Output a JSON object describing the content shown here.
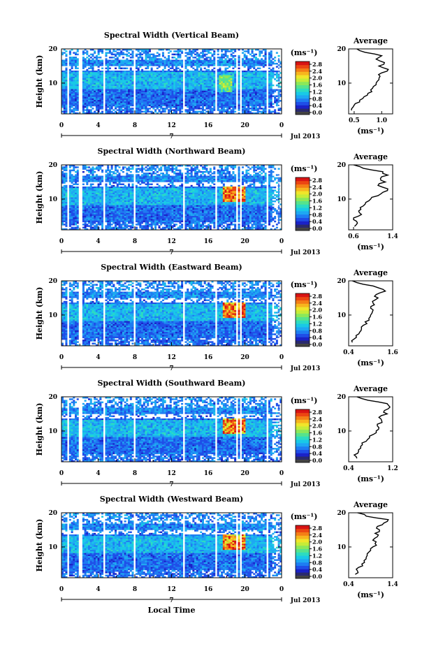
{
  "chart_data": [
    {
      "type": "heatmap",
      "title": "Spectral Width (Vertical Beam)",
      "ylabel": "Height (km)",
      "yticks": [
        "20",
        "10"
      ],
      "xticks": [
        "0",
        "4",
        "8",
        "12",
        "16",
        "20",
        "0"
      ],
      "date_label": "Jul 2013",
      "date_day": "7",
      "colorbar": {
        "unit": "(ms⁻¹)",
        "ticks": [
          "2.8",
          "2.4",
          "2.0",
          "1.6",
          "1.2",
          "0.8",
          "0.4",
          "0.0"
        ]
      },
      "average": {
        "title": "Average",
        "xticks": [
          "0.5",
          "1.0"
        ],
        "yticks": [
          "20",
          "10"
        ],
        "xlabel": "(ms⁻¹)",
        "xlim": [
          0.4,
          1.2
        ],
        "height": [
          2,
          3,
          4,
          5,
          6,
          7,
          8,
          9,
          10,
          11,
          12,
          13,
          14,
          15,
          16,
          17,
          18,
          19,
          20
        ],
        "value": [
          0.45,
          0.48,
          0.52,
          0.6,
          0.68,
          0.75,
          0.8,
          0.85,
          0.9,
          0.95,
          0.97,
          1.0,
          1.12,
          0.95,
          1.05,
          0.9,
          1.0,
          0.7,
          0.55
        ]
      }
    },
    {
      "type": "heatmap",
      "title": "Spectral Width (Northward Beam)",
      "ylabel": "Height (km)",
      "yticks": [
        "20",
        "10"
      ],
      "xticks": [
        "0",
        "4",
        "8",
        "12",
        "16",
        "20",
        "0"
      ],
      "date_label": "Jul 2013",
      "date_day": "7",
      "colorbar": {
        "unit": "(ms⁻¹)",
        "ticks": [
          "2.8",
          "2.4",
          "2.0",
          "1.6",
          "1.2",
          "0.8",
          "0.4",
          "0.0"
        ]
      },
      "average": {
        "title": "Average",
        "xticks": [
          "0.6",
          "1.4"
        ],
        "yticks": [
          "20",
          "10"
        ],
        "xlabel": "(ms⁻¹)",
        "xlim": [
          0.5,
          1.4
        ],
        "height": [
          2,
          3,
          4,
          5,
          6,
          7,
          8,
          9,
          10,
          11,
          12,
          13,
          14,
          15,
          16,
          17,
          18,
          19,
          20
        ],
        "value": [
          0.62,
          0.68,
          0.6,
          0.7,
          0.72,
          0.75,
          0.8,
          0.85,
          0.95,
          1.1,
          1.2,
          1.3,
          1.1,
          1.25,
          1.15,
          1.3,
          1.2,
          0.8,
          0.6
        ]
      }
    },
    {
      "type": "heatmap",
      "title": "Spectral Width (Eastward Beam)",
      "ylabel": "Height (km)",
      "yticks": [
        "20",
        "10"
      ],
      "xticks": [
        "0",
        "4",
        "8",
        "12",
        "16",
        "20",
        "0"
      ],
      "date_label": "Jul 2013",
      "date_day": "7",
      "colorbar": {
        "unit": "(ms⁻¹)",
        "ticks": [
          "2.8",
          "2.4",
          "2.0",
          "1.6",
          "1.2",
          "0.8",
          "0.4",
          "0.0"
        ]
      },
      "average": {
        "title": "Average",
        "xticks": [
          "0.4",
          "1.6"
        ],
        "yticks": [
          "20",
          "10"
        ],
        "xlabel": "(ms⁻¹)",
        "xlim": [
          0.4,
          1.6
        ],
        "height": [
          2,
          3,
          4,
          5,
          6,
          7,
          8,
          9,
          10,
          11,
          12,
          13,
          14,
          15,
          16,
          17,
          18,
          19,
          20
        ],
        "value": [
          0.5,
          0.55,
          0.6,
          0.7,
          0.75,
          0.8,
          0.85,
          0.95,
          1.0,
          1.05,
          1.0,
          1.1,
          1.05,
          1.2,
          1.15,
          1.4,
          1.2,
          0.8,
          0.5
        ]
      }
    },
    {
      "type": "heatmap",
      "title": "Spectral Width (Southward Beam)",
      "ylabel": "Height (km)",
      "yticks": [
        "20",
        "10"
      ],
      "xticks": [
        "0",
        "4",
        "8",
        "12",
        "16",
        "20",
        "0"
      ],
      "date_label": "Jul 2013",
      "date_day": "7",
      "colorbar": {
        "unit": "(ms⁻¹)",
        "ticks": [
          "2.8",
          "2.4",
          "2.0",
          "1.6",
          "1.2",
          "0.8",
          "0.4",
          "0.0"
        ]
      },
      "average": {
        "title": "Average",
        "xticks": [
          "0.4",
          "1.2"
        ],
        "yticks": [
          "20",
          "10"
        ],
        "xlabel": "(ms⁻¹)",
        "xlim": [
          0.4,
          1.2
        ],
        "height": [
          2,
          3,
          4,
          5,
          6,
          7,
          8,
          9,
          10,
          11,
          12,
          13,
          14,
          15,
          16,
          17,
          18,
          19,
          20
        ],
        "value": [
          0.55,
          0.5,
          0.58,
          0.62,
          0.65,
          0.72,
          0.78,
          0.85,
          0.9,
          0.95,
          0.92,
          1.0,
          0.95,
          1.1,
          1.05,
          1.15,
          1.1,
          0.75,
          0.55
        ]
      }
    },
    {
      "type": "heatmap",
      "title": "Spectral Width (Westward Beam)",
      "ylabel": "Height (km)",
      "yticks": [
        "20",
        "10"
      ],
      "xticks": [
        "0",
        "4",
        "8",
        "12",
        "16",
        "20",
        "0"
      ],
      "date_label": "Jul 2013",
      "date_day": "7",
      "xlabel": "Local Time",
      "colorbar": {
        "unit": "(ms⁻¹)",
        "ticks": [
          "2.8",
          "2.4",
          "2.0",
          "1.6",
          "1.2",
          "0.8",
          "0.4",
          "0.0"
        ]
      },
      "average": {
        "title": "Average",
        "xticks": [
          "0.4",
          "1.4"
        ],
        "yticks": [
          "20",
          "10"
        ],
        "xlabel": "(ms⁻¹)",
        "xlim": [
          0.4,
          1.4
        ],
        "height": [
          2,
          3,
          4,
          5,
          6,
          7,
          8,
          9,
          10,
          11,
          12,
          13,
          14,
          15,
          16,
          17,
          18,
          19,
          20
        ],
        "value": [
          0.55,
          0.6,
          0.62,
          0.7,
          0.75,
          0.8,
          0.82,
          0.9,
          0.95,
          1.0,
          0.95,
          1.05,
          1.0,
          1.1,
          1.05,
          1.2,
          1.3,
          0.8,
          0.6
        ]
      }
    }
  ]
}
